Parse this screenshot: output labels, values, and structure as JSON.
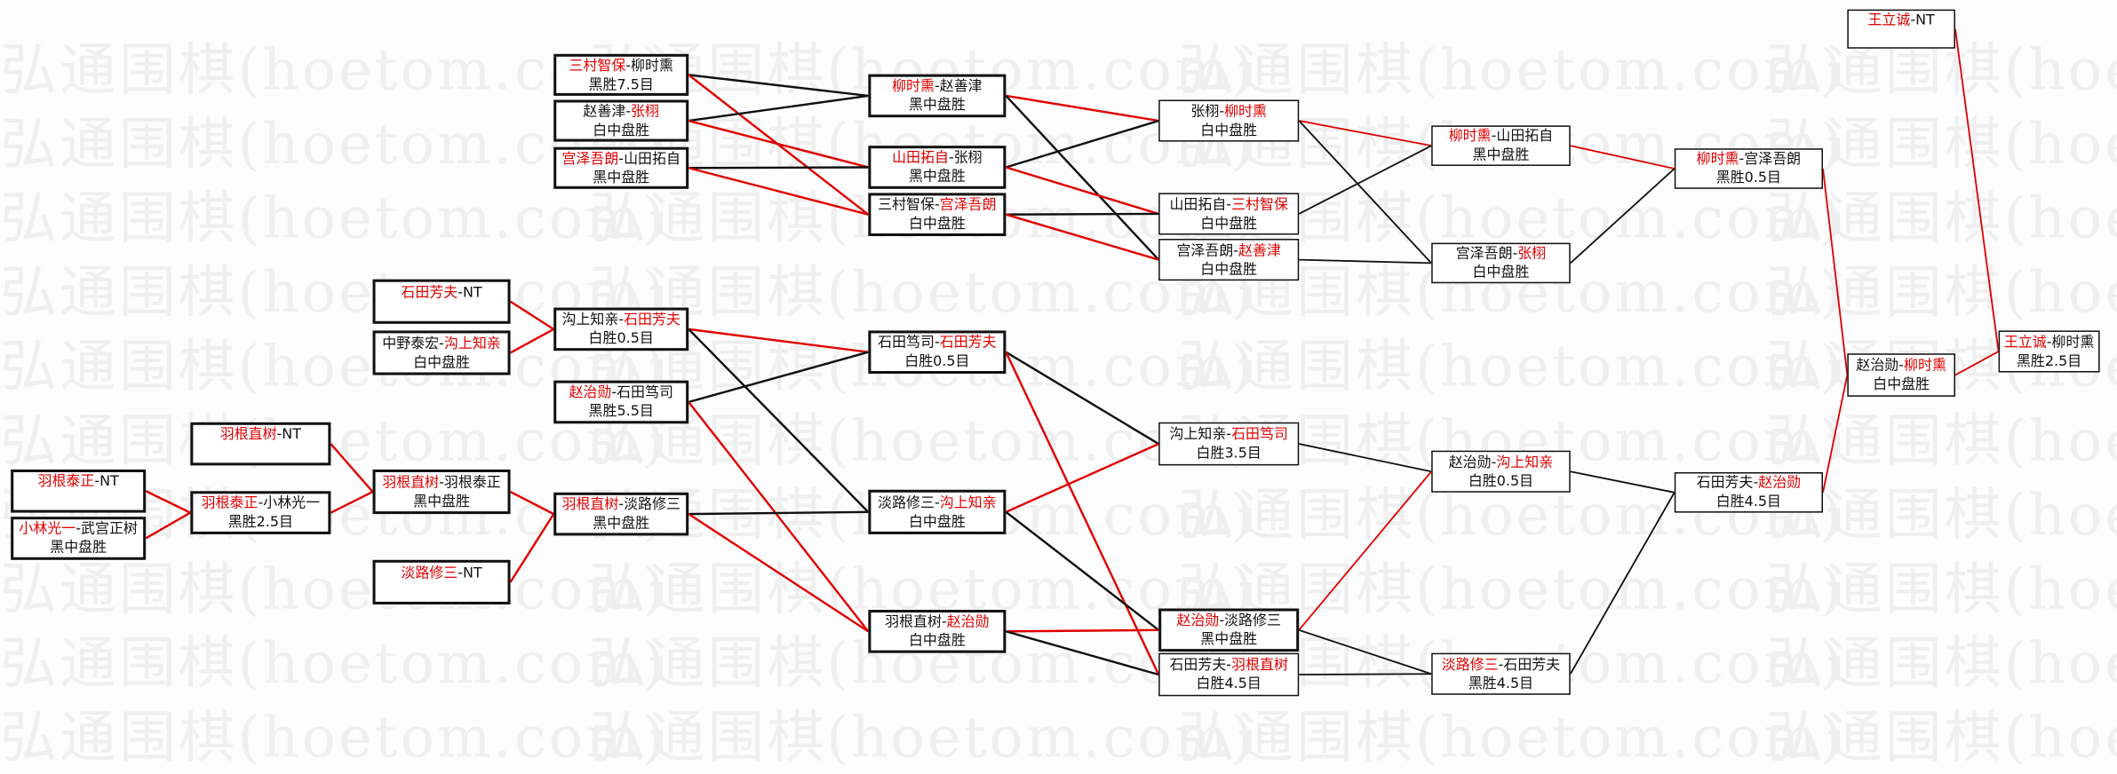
{
  "watermark": "弘通围棋(hoetom.com)",
  "colors": {
    "win_line": "#e00000",
    "loss_line": "#111111",
    "winner_name": "#e00000"
  },
  "matches": [
    {
      "id": "a1",
      "p1": "羽根泰正",
      "p2": "NT",
      "winner": 1,
      "result": ""
    },
    {
      "id": "a2",
      "p1": "小林光一",
      "p2": "武宫正树",
      "winner": 1,
      "result": "黑中盘胜"
    },
    {
      "id": "b1",
      "p1": "羽根直树",
      "p2": "NT",
      "winner": 1,
      "result": ""
    },
    {
      "id": "b2",
      "p1": "羽根泰正",
      "p2": "小林光一",
      "winner": 1,
      "result": "黑胜2.5目"
    },
    {
      "id": "c1",
      "p1": "石田芳夫",
      "p2": "NT",
      "winner": 1,
      "result": ""
    },
    {
      "id": "c2",
      "p1": "中野泰宏",
      "p2": "沟上知亲",
      "winner": 2,
      "result": "白中盘胜"
    },
    {
      "id": "c3",
      "p1": "羽根直树",
      "p2": "羽根泰正",
      "winner": 1,
      "result": "黑中盘胜"
    },
    {
      "id": "c4",
      "p1": "淡路修三",
      "p2": "NT",
      "winner": 1,
      "result": ""
    },
    {
      "id": "d1",
      "p1": "三村智保",
      "p2": "柳时熏",
      "winner": 1,
      "result": "黑胜7.5目"
    },
    {
      "id": "d2",
      "p1": "赵善津",
      "p2": "张栩",
      "winner": 2,
      "result": "白中盘胜"
    },
    {
      "id": "d3",
      "p1": "宫泽吾朗",
      "p2": "山田拓自",
      "winner": 1,
      "result": "黑中盘胜"
    },
    {
      "id": "d4",
      "p1": "沟上知亲",
      "p2": "石田芳夫",
      "winner": 2,
      "result": "白胜0.5目"
    },
    {
      "id": "d5",
      "p1": "赵治勋",
      "p2": "石田笃司",
      "winner": 1,
      "result": "黑胜5.5目"
    },
    {
      "id": "d6",
      "p1": "羽根直树",
      "p2": "淡路修三",
      "winner": 1,
      "result": "黑中盘胜"
    },
    {
      "id": "e1",
      "p1": "柳时熏",
      "p2": "赵善津",
      "winner": 1,
      "result": "黑中盘胜"
    },
    {
      "id": "e2",
      "p1": "山田拓自",
      "p2": "张栩",
      "winner": 1,
      "result": "黑中盘胜"
    },
    {
      "id": "e3",
      "p1": "三村智保",
      "p2": "宫泽吾朗",
      "winner": 2,
      "result": "白中盘胜"
    },
    {
      "id": "e4",
      "p1": "石田笃司",
      "p2": "石田芳夫",
      "winner": 2,
      "result": "白胜0.5目"
    },
    {
      "id": "e5",
      "p1": "淡路修三",
      "p2": "沟上知亲",
      "winner": 2,
      "result": "白中盘胜"
    },
    {
      "id": "e6",
      "p1": "羽根直树",
      "p2": "赵治勋",
      "winner": 2,
      "result": "白中盘胜"
    },
    {
      "id": "f1",
      "p1": "张栩",
      "p2": "柳时熏",
      "winner": 2,
      "result": "白中盘胜"
    },
    {
      "id": "f2",
      "p1": "山田拓自",
      "p2": "三村智保",
      "winner": 2,
      "result": "白中盘胜"
    },
    {
      "id": "f3",
      "p1": "宫泽吾朗",
      "p2": "赵善津",
      "winner": 2,
      "result": "白中盘胜"
    },
    {
      "id": "f4",
      "p1": "沟上知亲",
      "p2": "石田笃司",
      "winner": 2,
      "result": "白胜3.5目"
    },
    {
      "id": "f5",
      "p1": "赵治勋",
      "p2": "淡路修三",
      "winner": 1,
      "result": "黑中盘胜"
    },
    {
      "id": "f6",
      "p1": "石田芳夫",
      "p2": "羽根直树",
      "winner": 2,
      "result": "白胜4.5目"
    },
    {
      "id": "g1",
      "p1": "柳时熏",
      "p2": "山田拓自",
      "winner": 1,
      "result": "黑中盘胜"
    },
    {
      "id": "g2",
      "p1": "宫泽吾朗",
      "p2": "张栩",
      "winner": 2,
      "result": "白中盘胜"
    },
    {
      "id": "g3",
      "p1": "赵治勋",
      "p2": "沟上知亲",
      "winner": 2,
      "result": "白胜0.5目"
    },
    {
      "id": "g4",
      "p1": "淡路修三",
      "p2": "石田芳夫",
      "winner": 1,
      "result": "黑胜4.5目"
    },
    {
      "id": "h1",
      "p1": "柳时熏",
      "p2": "宫泽吾朗",
      "winner": 1,
      "result": "黑胜0.5目"
    },
    {
      "id": "h2",
      "p1": "石田芳夫",
      "p2": "赵治勋",
      "winner": 2,
      "result": "白胜4.5目"
    },
    {
      "id": "i1",
      "p1": "王立诚",
      "p2": "NT",
      "winner": 1,
      "result": ""
    },
    {
      "id": "i2",
      "p1": "赵治勋",
      "p2": "柳时熏",
      "winner": 2,
      "result": "白中盘胜"
    },
    {
      "id": "j1",
      "p1": "王立诚",
      "p2": "柳时熏",
      "winner": 1,
      "result": "黑胜2.5目"
    }
  ],
  "edges": [
    [
      "a1",
      "b2",
      "win"
    ],
    [
      "a2",
      "b2",
      "win"
    ],
    [
      "b1",
      "c3",
      "win"
    ],
    [
      "b2",
      "c3",
      "win"
    ],
    [
      "c1",
      "d4",
      "win"
    ],
    [
      "c2",
      "d4",
      "win"
    ],
    [
      "c3",
      "d6",
      "win"
    ],
    [
      "c4",
      "d6",
      "win"
    ],
    [
      "d1",
      "e1",
      "loss"
    ],
    [
      "d1",
      "e3",
      "win"
    ],
    [
      "d2",
      "e1",
      "loss"
    ],
    [
      "d2",
      "e2",
      "win"
    ],
    [
      "d3",
      "e2",
      "loss"
    ],
    [
      "d3",
      "e3",
      "win"
    ],
    [
      "d4",
      "e4",
      "win"
    ],
    [
      "d4",
      "e5",
      "loss"
    ],
    [
      "d5",
      "e4",
      "loss"
    ],
    [
      "d5",
      "e6",
      "win"
    ],
    [
      "d6",
      "e5",
      "loss"
    ],
    [
      "d6",
      "e6",
      "win"
    ],
    [
      "e1",
      "f1",
      "win"
    ],
    [
      "e1",
      "f3",
      "loss"
    ],
    [
      "e2",
      "f1",
      "loss"
    ],
    [
      "e2",
      "f2",
      "win"
    ],
    [
      "e3",
      "f2",
      "loss"
    ],
    [
      "e3",
      "f3",
      "win"
    ],
    [
      "e4",
      "f4",
      "loss"
    ],
    [
      "e4",
      "f6",
      "win"
    ],
    [
      "e5",
      "f4",
      "win"
    ],
    [
      "e5",
      "f5",
      "loss"
    ],
    [
      "e6",
      "f5",
      "win"
    ],
    [
      "e6",
      "f6",
      "loss"
    ],
    [
      "f1",
      "g1",
      "win"
    ],
    [
      "f1",
      "g2",
      "loss"
    ],
    [
      "f2",
      "g1",
      "loss"
    ],
    [
      "f3",
      "g2",
      "loss"
    ],
    [
      "f4",
      "g3",
      "loss"
    ],
    [
      "f5",
      "g3",
      "win"
    ],
    [
      "f5",
      "g4",
      "loss"
    ],
    [
      "f6",
      "g4",
      "loss"
    ],
    [
      "g1",
      "h1",
      "win"
    ],
    [
      "g2",
      "h1",
      "loss"
    ],
    [
      "g3",
      "h2",
      "loss"
    ],
    [
      "g4",
      "h2",
      "loss"
    ],
    [
      "h1",
      "i2",
      "win"
    ],
    [
      "h2",
      "i2",
      "win"
    ],
    [
      "i1",
      "j1",
      "win"
    ],
    [
      "i2",
      "j1",
      "win"
    ]
  ]
}
